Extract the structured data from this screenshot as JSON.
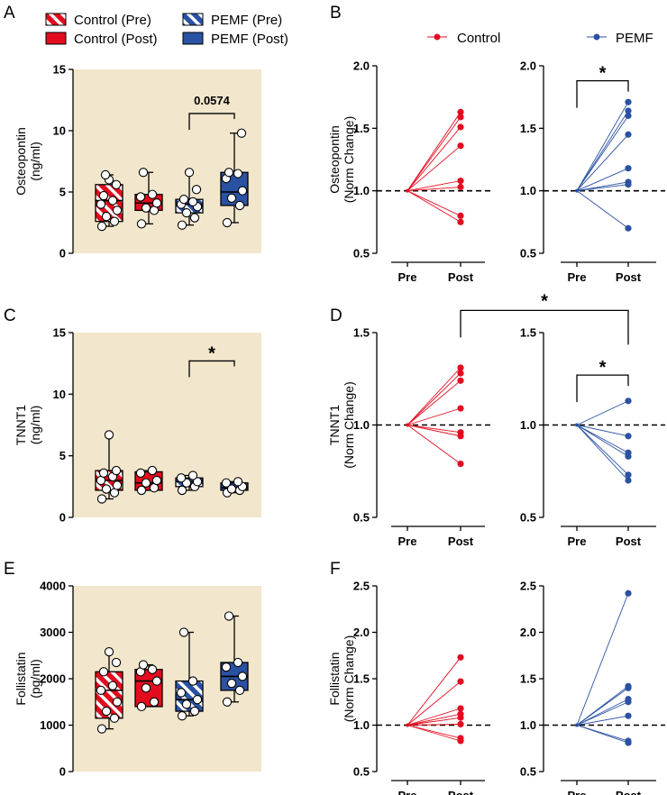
{
  "panel_labels": [
    "A",
    "B",
    "C",
    "D",
    "E",
    "F"
  ],
  "legend_box": [
    {
      "name": "Control (Pre)",
      "color": "#e30c1f",
      "pattern": "hatched"
    },
    {
      "name": "Control (Post)",
      "color": "#e30c1f",
      "pattern": "solid"
    },
    {
      "name": "PEMF (Pre)",
      "color": "#2a52a3",
      "pattern": "hatched"
    },
    {
      "name": "PEMF (Post)",
      "color": "#2a52a3",
      "pattern": "solid"
    }
  ],
  "legend_line": [
    {
      "name": "Control",
      "color": "#e30c1f"
    },
    {
      "name": "PEMF",
      "color": "#2a52a3"
    }
  ],
  "colors": {
    "control": "#e30c1f",
    "pemf": "#2a52a3",
    "panel_background": "#f2e6cc"
  },
  "chart_data": [
    {
      "panel": "A",
      "type": "box",
      "ylabel": [
        "Osteopontin",
        "(ng/ml)"
      ],
      "ylim": [
        0,
        15
      ],
      "yticks": [
        0,
        5,
        10,
        15
      ],
      "ytick_labels": [
        "0",
        "5",
        "10",
        "15"
      ],
      "groups": [
        {
          "name": "Control (Pre)",
          "min": 2.2,
          "q1": 2.6,
          "median": 4.3,
          "q3": 5.6,
          "max": 6.4,
          "points": [
            2.2,
            2.6,
            3.0,
            3.5,
            4.0,
            4.3,
            4.7,
            5.6,
            6.0,
            6.4
          ]
        },
        {
          "name": "Control (Post)",
          "min": 2.4,
          "q1": 3.5,
          "median": 4.1,
          "q3": 4.8,
          "max": 6.6,
          "points": [
            2.4,
            3.5,
            3.7,
            4.1,
            4.6,
            4.8,
            6.6
          ]
        },
        {
          "name": "PEMF (Pre)",
          "min": 2.3,
          "q1": 3.3,
          "median": 4.0,
          "q3": 4.4,
          "max": 6.6,
          "points": [
            2.3,
            2.9,
            3.3,
            3.8,
            4.0,
            4.2,
            4.4,
            5.2,
            6.6
          ]
        },
        {
          "name": "PEMF (Post)",
          "min": 2.5,
          "q1": 3.9,
          "median": 5.0,
          "q3": 6.6,
          "max": 9.8,
          "points": [
            2.5,
            3.9,
            4.5,
            5.1,
            6.1,
            6.5,
            6.6,
            9.8
          ]
        }
      ],
      "annotation": {
        "text": "0.0574",
        "from": 2,
        "to": 3,
        "y": 11.4
      }
    },
    {
      "panel": "C",
      "type": "box",
      "ylabel": [
        "TNNT1",
        "(ng/ml)"
      ],
      "ylim": [
        0,
        15
      ],
      "yticks": [
        0,
        5,
        10,
        15
      ],
      "ytick_labels": [
        "0",
        "5",
        "10",
        "15"
      ],
      "groups": [
        {
          "name": "Control (Pre)",
          "min": 1.5,
          "q1": 2.2,
          "median": 3.0,
          "q3": 3.8,
          "max": 6.7,
          "points": [
            1.5,
            2.0,
            2.3,
            2.6,
            3.0,
            3.3,
            3.6,
            3.8,
            6.7
          ]
        },
        {
          "name": "Control (Post)",
          "min": 2.2,
          "q1": 2.2,
          "median": 2.8,
          "q3": 3.7,
          "max": 3.8,
          "points": [
            2.2,
            2.4,
            2.8,
            3.0,
            3.6,
            3.8
          ]
        },
        {
          "name": "PEMF (Pre)",
          "min": 2.2,
          "q1": 2.5,
          "median": 2.9,
          "q3": 3.2,
          "max": 3.4,
          "points": [
            2.2,
            2.5,
            2.8,
            2.9,
            3.2,
            3.4
          ]
        },
        {
          "name": "PEMF (Post)",
          "min": 2.0,
          "q1": 2.2,
          "median": 2.4,
          "q3": 2.8,
          "max": 2.9,
          "points": [
            2.0,
            2.2,
            2.3,
            2.5,
            2.8,
            2.9
          ]
        }
      ],
      "annotation": {
        "text": "*",
        "from": 2,
        "to": 3,
        "y": 12.7
      }
    },
    {
      "panel": "E",
      "type": "box",
      "ylabel": [
        "Follistatin",
        "(pg/ml)"
      ],
      "ylim": [
        0,
        4000
      ],
      "yticks": [
        0,
        1000,
        2000,
        3000,
        4000
      ],
      "ytick_labels": [
        "0",
        "1000",
        "2000",
        "3000",
        "4000"
      ],
      "groups": [
        {
          "name": "Control (Pre)",
          "min": 920,
          "q1": 1150,
          "median": 1750,
          "q3": 2150,
          "max": 2580,
          "points": [
            920,
            1150,
            1300,
            1500,
            1750,
            1850,
            2150,
            2350,
            2580
          ]
        },
        {
          "name": "Control (Post)",
          "min": 1400,
          "q1": 1400,
          "median": 1950,
          "q3": 2200,
          "max": 2300,
          "points": [
            1400,
            1500,
            1800,
            1950,
            2150,
            2200,
            2300
          ]
        },
        {
          "name": "PEMF (Pre)",
          "min": 1200,
          "q1": 1300,
          "median": 1550,
          "q3": 1950,
          "max": 3000,
          "points": [
            1200,
            1300,
            1450,
            1550,
            1700,
            1950,
            3000
          ]
        },
        {
          "name": "PEMF (Post)",
          "min": 1500,
          "q1": 1750,
          "median": 2050,
          "q3": 2350,
          "max": 3350,
          "points": [
            1500,
            1750,
            1900,
            2050,
            2250,
            2350,
            3350
          ]
        }
      ]
    },
    {
      "panel": "B",
      "type": "line",
      "ylabel": [
        "Osteopontin",
        "(Norm Change)"
      ],
      "ylim": [
        0.5,
        2.0
      ],
      "yticks": [
        0.5,
        1.0,
        1.5,
        2.0
      ],
      "ytick_labels": [
        "0.5",
        "1.0",
        "1.5",
        "2.0"
      ],
      "categories": [
        "Pre",
        "Post"
      ],
      "reference_line": 1.0,
      "series": [
        {
          "name": "Control",
          "pre": 1.0,
          "post": [
            1.63,
            1.59,
            1.51,
            1.36,
            1.08,
            1.03,
            0.8,
            0.75
          ]
        },
        {
          "name": "PEMF",
          "pre": 1.0,
          "post": [
            1.71,
            1.64,
            1.6,
            1.45,
            1.18,
            1.07,
            1.05,
            0.7
          ]
        }
      ],
      "annotations": [
        {
          "text": "*",
          "subplot": 1,
          "from": 0,
          "to": 1,
          "y": 1.88
        }
      ]
    },
    {
      "panel": "D",
      "type": "line",
      "ylabel": [
        "TNNT1",
        "(Norm Change)"
      ],
      "ylim": [
        0.5,
        1.5
      ],
      "yticks": [
        0.5,
        1.0,
        1.5
      ],
      "ytick_labels": [
        "0.5",
        "1.0",
        "1.5"
      ],
      "categories": [
        "Pre",
        "Post"
      ],
      "reference_line": 1.0,
      "series": [
        {
          "name": "Control",
          "pre": 1.0,
          "post": [
            1.31,
            1.28,
            1.24,
            1.09,
            0.96,
            0.94,
            0.79
          ]
        },
        {
          "name": "PEMF",
          "pre": 1.0,
          "post": [
            1.13,
            0.94,
            0.85,
            0.83,
            0.73,
            0.7
          ]
        }
      ],
      "annotations": [
        {
          "text": "*",
          "subplot": 1,
          "from": 0,
          "to": 1,
          "y": 1.27
        },
        {
          "text": "*",
          "between": "Control Post / PEMF Post",
          "y": 1.62
        }
      ]
    },
    {
      "panel": "F",
      "type": "line",
      "ylabel": [
        "Follistatin",
        "(Norm Change)"
      ],
      "ylim": [
        0.5,
        2.5
      ],
      "yticks": [
        0.5,
        1.0,
        1.5,
        2.0,
        2.5
      ],
      "ytick_labels": [
        "0.5",
        "1.0",
        "1.5",
        "2.0",
        "2.5"
      ],
      "categories": [
        "Pre",
        "Post"
      ],
      "reference_line": 1.0,
      "series": [
        {
          "name": "Control",
          "pre": 1.0,
          "post": [
            1.73,
            1.47,
            1.18,
            1.12,
            1.08,
            1.01,
            0.86,
            0.83
          ]
        },
        {
          "name": "PEMF",
          "pre": 1.0,
          "post": [
            2.42,
            1.42,
            1.4,
            1.28,
            1.25,
            1.1,
            0.83,
            0.81
          ]
        }
      ]
    }
  ]
}
